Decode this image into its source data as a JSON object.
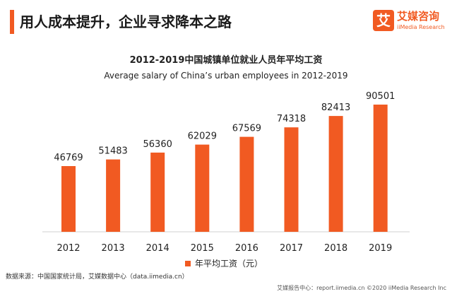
{
  "header": {
    "title": "用人成本提升，企业寻求降本之路",
    "accent_color": "#f15a22"
  },
  "logo": {
    "mark": "艾",
    "name_cn": "艾媒咨询",
    "name_en": "iiMedia Research"
  },
  "chart_data": {
    "type": "bar",
    "title": "2012-2019中国城镇单位就业人员年平均工资",
    "subtitle": "Average salary of China’s urban employees in 2012-2019",
    "categories": [
      "2012",
      "2013",
      "2014",
      "2015",
      "2016",
      "2017",
      "2018",
      "2019"
    ],
    "series": [
      {
        "name": "年平均工资（元）",
        "values": [
          46769,
          51483,
          56360,
          62029,
          67569,
          74318,
          82413,
          90501
        ],
        "color": "#f15a22"
      }
    ],
    "legend_position": "bottom",
    "grid": false,
    "data_labels": true
  },
  "source_note": "数据来源：中国国家统计局，艾媒数据中心（data.iimedia.cn）",
  "footer": "艾媒报告中心：report.iimedia.cn   ©2020 iiMedia Research Inc"
}
